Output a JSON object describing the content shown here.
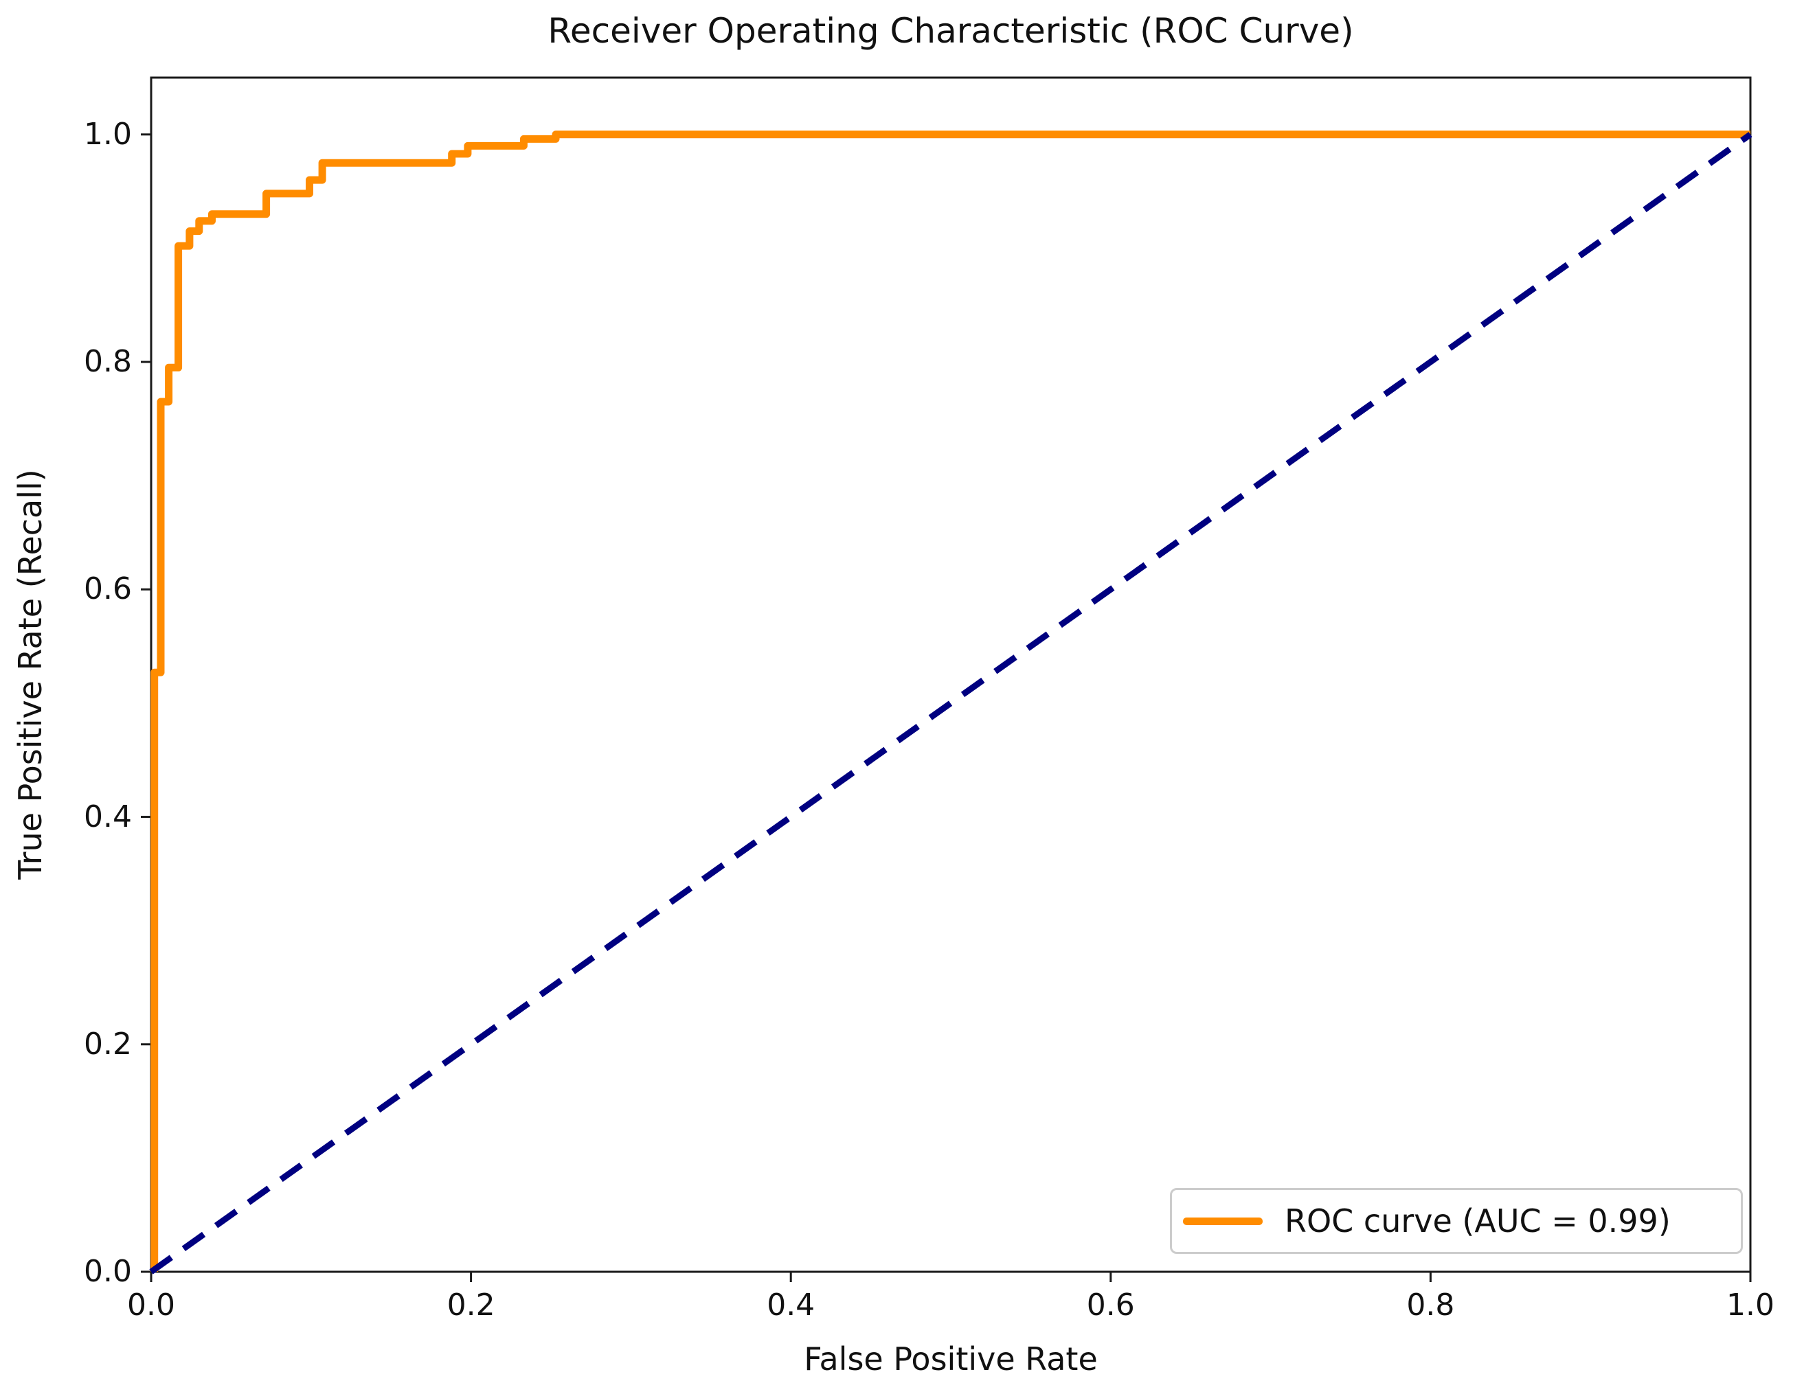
{
  "chart_data": {
    "type": "line",
    "title": "Receiver Operating Characteristic (ROC Curve)",
    "xlabel": "False Positive Rate",
    "ylabel": "True Positive Rate (Recall)",
    "xlim": [
      0.0,
      1.0
    ],
    "ylim": [
      0.0,
      1.05
    ],
    "grid": false,
    "x_ticks": [
      {
        "value": 0.0,
        "label": "0.0"
      },
      {
        "value": 0.2,
        "label": "0.2"
      },
      {
        "value": 0.4,
        "label": "0.4"
      },
      {
        "value": 0.6,
        "label": "0.6"
      },
      {
        "value": 0.8,
        "label": "0.8"
      },
      {
        "value": 1.0,
        "label": "1.0"
      }
    ],
    "y_ticks": [
      {
        "value": 0.0,
        "label": "0.0"
      },
      {
        "value": 0.2,
        "label": "0.2"
      },
      {
        "value": 0.4,
        "label": "0.4"
      },
      {
        "value": 0.6,
        "label": "0.6"
      },
      {
        "value": 0.8,
        "label": "0.8"
      },
      {
        "value": 1.0,
        "label": "1.0"
      }
    ],
    "legend": {
      "position": "lower right",
      "entries": [
        {
          "label": "ROC curve (AUC = 0.99)",
          "color": "#FF8C00",
          "style": "solid"
        }
      ]
    },
    "series": [
      {
        "name": "roc-curve",
        "color": "#FF8C00",
        "style": "solid",
        "auc": 0.99,
        "points": [
          [
            0.002,
            0.0
          ],
          [
            0.002,
            0.527
          ],
          [
            0.006,
            0.527
          ],
          [
            0.006,
            0.765
          ],
          [
            0.011,
            0.765
          ],
          [
            0.011,
            0.795
          ],
          [
            0.017,
            0.795
          ],
          [
            0.017,
            0.902
          ],
          [
            0.024,
            0.902
          ],
          [
            0.024,
            0.915
          ],
          [
            0.03,
            0.915
          ],
          [
            0.03,
            0.924
          ],
          [
            0.038,
            0.924
          ],
          [
            0.038,
            0.93
          ],
          [
            0.072,
            0.93
          ],
          [
            0.072,
            0.948
          ],
          [
            0.099,
            0.948
          ],
          [
            0.099,
            0.96
          ],
          [
            0.107,
            0.96
          ],
          [
            0.107,
            0.975
          ],
          [
            0.188,
            0.975
          ],
          [
            0.188,
            0.983
          ],
          [
            0.198,
            0.983
          ],
          [
            0.198,
            0.99
          ],
          [
            0.233,
            0.99
          ],
          [
            0.233,
            0.996
          ],
          [
            0.253,
            0.996
          ],
          [
            0.253,
            1.0
          ],
          [
            1.0,
            1.0
          ]
        ]
      },
      {
        "name": "chance-diagonal",
        "color": "#000080",
        "style": "dashed",
        "points": [
          [
            0.0,
            0.0
          ],
          [
            1.0,
            1.0
          ]
        ]
      }
    ],
    "colors": {
      "roc": "#FF8C00",
      "diagonal": "#000080",
      "spine": "#1a1a1a",
      "text": "#111111",
      "legend_border": "#cccccc"
    }
  }
}
